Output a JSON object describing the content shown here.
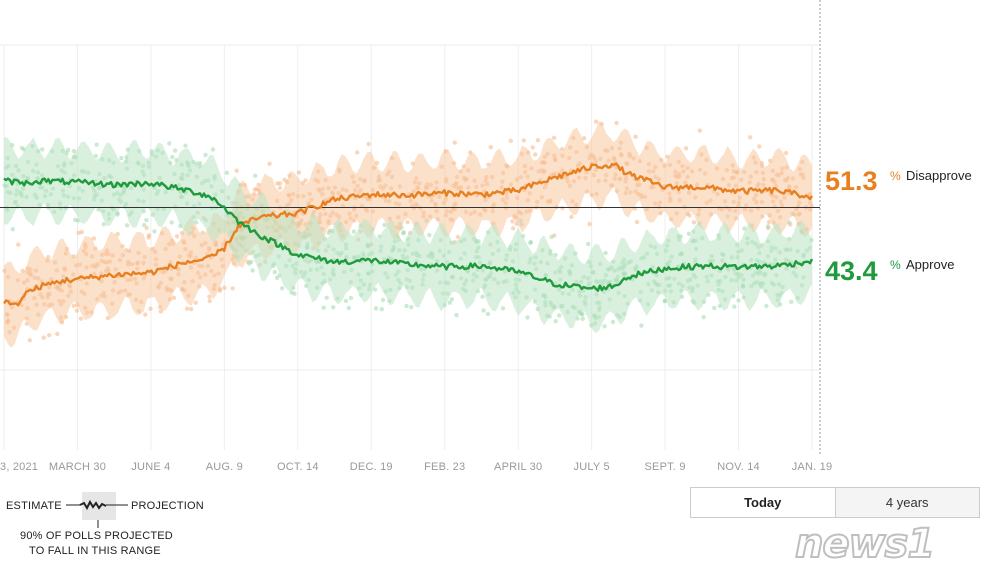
{
  "chart_data": {
    "type": "line",
    "title": "",
    "xlabel": "",
    "ylabel": "",
    "x_tick_labels": [
      "3, 2021",
      "MARCH 30",
      "JUNE 4",
      "AUG. 9",
      "OCT. 14",
      "DEC. 19",
      "FEB. 23",
      "APRIL 30",
      "JULY 5",
      "SEPT. 9",
      "NOV. 14",
      "JAN. 19"
    ],
    "x_index_range": [
      0,
      11
    ],
    "ylim": [
      30,
      70
    ],
    "reference_line": 50,
    "grid": true,
    "series": [
      {
        "name": "Disapprove",
        "color": "#e9801f",
        "band_color": "#f7c79e",
        "dot_color": "#f5b583",
        "latest_value": 51.3,
        "latest_label": "51.3",
        "x": [
          0.0,
          0.15,
          0.3,
          0.5,
          0.8,
          1.0,
          1.5,
          2.0,
          2.5,
          2.8,
          3.0,
          3.2,
          3.5,
          4.0,
          4.5,
          5.0,
          5.5,
          6.0,
          6.5,
          7.0,
          7.5,
          8.0,
          8.3,
          8.5,
          9.0,
          9.5,
          10.0,
          10.5,
          11.0
        ],
        "values": [
          38.5,
          37.8,
          39.5,
          40.3,
          41.0,
          41.2,
          41.7,
          42.0,
          43.3,
          43.7,
          45.0,
          47.8,
          48.8,
          49.3,
          51.0,
          51.6,
          51.5,
          51.8,
          51.6,
          52.1,
          53.7,
          55.0,
          55.3,
          54.1,
          52.5,
          52.5,
          52.0,
          52.1,
          51.3
        ]
      },
      {
        "name": "Approve",
        "color": "#1f9a3c",
        "band_color": "#b9e3c3",
        "dot_color": "#9fd8ad",
        "latest_value": 43.4,
        "latest_label": "43.4",
        "x": [
          0.0,
          0.3,
          0.5,
          1.0,
          1.5,
          2.0,
          2.5,
          2.8,
          3.0,
          3.2,
          3.5,
          4.0,
          4.5,
          5.0,
          5.5,
          6.0,
          6.5,
          7.0,
          7.5,
          8.0,
          8.3,
          8.5,
          9.0,
          9.5,
          10.0,
          10.5,
          11.0
        ],
        "values": [
          53.3,
          53.0,
          53.3,
          53.1,
          52.8,
          53.0,
          52.1,
          51.4,
          50.0,
          48.2,
          46.5,
          44.2,
          43.3,
          43.5,
          43.0,
          42.7,
          42.8,
          42.1,
          40.6,
          40.0,
          40.3,
          41.5,
          42.5,
          42.8,
          42.7,
          42.8,
          43.4
        ]
      }
    ]
  },
  "legend": {
    "estimate": "ESTIMATE",
    "projection": "PROJECTION",
    "range_line1": "90% OF POLLS PROJECTED",
    "range_line2": "TO FALL IN THIS RANGE"
  },
  "toggle": {
    "today": "Today",
    "four_years": "4 years"
  },
  "watermark": "news1",
  "percent_sign": "%"
}
